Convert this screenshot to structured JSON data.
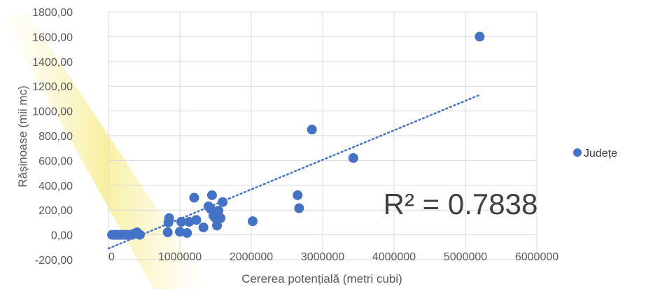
{
  "chart_data": {
    "type": "scatter",
    "xlabel": "Cererea potențială (metri cubi)",
    "ylabel": "Rășinoase (mii mc)",
    "xlim": [
      0,
      6000000
    ],
    "ylim": [
      -200,
      1800
    ],
    "x_ticks": [
      "0",
      "1000000",
      "2000000",
      "3000000",
      "4000000",
      "5000000",
      "6000000"
    ],
    "y_ticks": [
      "-200,00",
      "0,00",
      "200,00",
      "400,00",
      "600,00",
      "800,00",
      "1000,00",
      "1200,00",
      "1400,00",
      "1600,00",
      "1800,00"
    ],
    "grid": true,
    "legend_position": "right",
    "series": [
      {
        "name": "Județe",
        "color": "#4472C4",
        "points": [
          [
            50000,
            0
          ],
          [
            80000,
            0
          ],
          [
            100000,
            0
          ],
          [
            120000,
            0
          ],
          [
            150000,
            0
          ],
          [
            180000,
            0
          ],
          [
            200000,
            0
          ],
          [
            230000,
            0
          ],
          [
            260000,
            0
          ],
          [
            300000,
            0
          ],
          [
            330000,
            0
          ],
          [
            360000,
            10
          ],
          [
            400000,
            20
          ],
          [
            420000,
            5
          ],
          [
            440000,
            0
          ],
          [
            830000,
            20
          ],
          [
            840000,
            100
          ],
          [
            850000,
            135
          ],
          [
            1000000,
            25
          ],
          [
            1020000,
            105
          ],
          [
            1100000,
            15
          ],
          [
            1130000,
            105
          ],
          [
            1200000,
            300
          ],
          [
            1230000,
            120
          ],
          [
            1330000,
            60
          ],
          [
            1400000,
            230
          ],
          [
            1430000,
            210
          ],
          [
            1450000,
            320
          ],
          [
            1470000,
            155
          ],
          [
            1500000,
            135
          ],
          [
            1520000,
            75
          ],
          [
            1540000,
            195
          ],
          [
            1570000,
            135
          ],
          [
            1600000,
            265
          ],
          [
            2020000,
            110
          ],
          [
            2650000,
            320
          ],
          [
            2670000,
            215
          ],
          [
            2850000,
            850
          ],
          [
            3430000,
            620
          ],
          [
            5200000,
            1600
          ]
        ],
        "trendline": {
          "type": "linear",
          "x_range": [
            0,
            5200000
          ],
          "y_at_start": -110,
          "y_at_end": 1130
        }
      }
    ],
    "annotation": "R² = 0.7838"
  }
}
